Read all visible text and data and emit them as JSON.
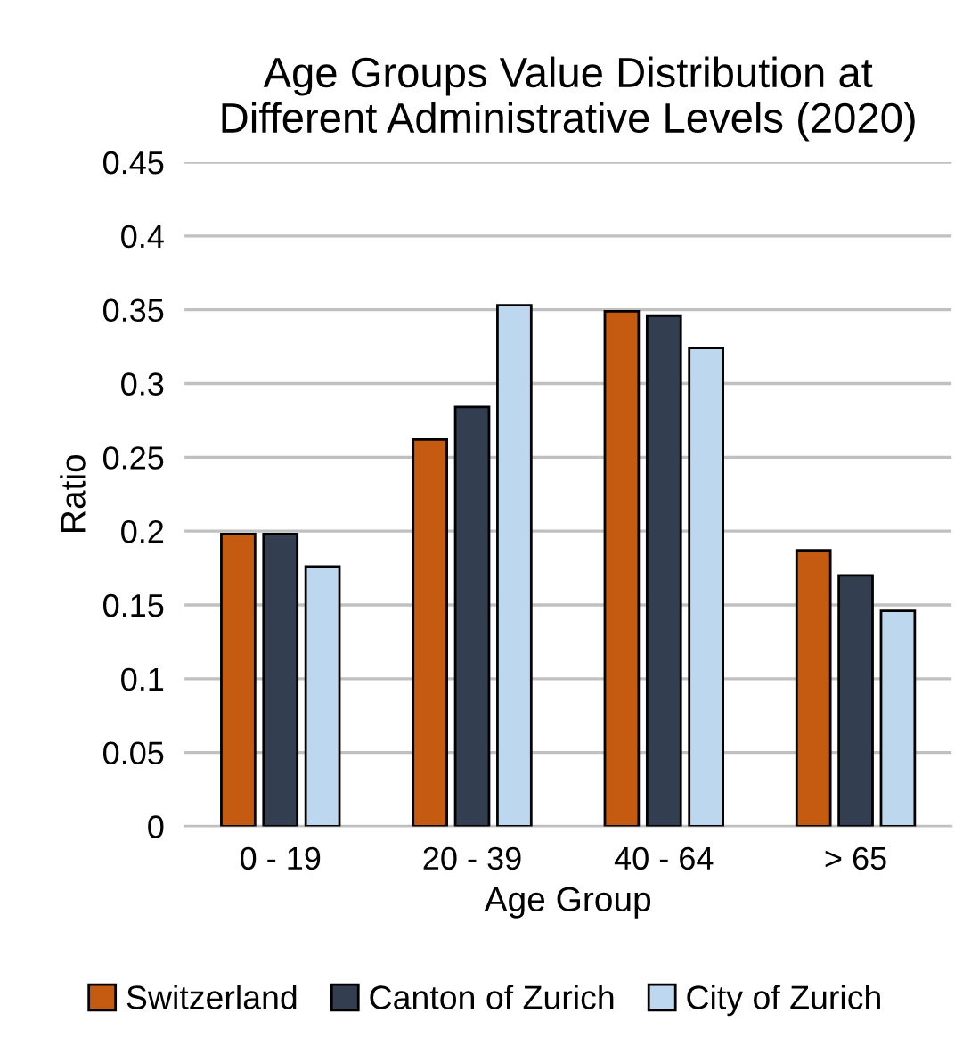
{
  "chart_data": {
    "type": "bar",
    "title": "Age Groups Value Distribution at\nDifferent Administrative Levels (2020)",
    "xlabel": "Age Group",
    "ylabel": "Ratio",
    "categories": [
      "0 - 19",
      "20 - 39",
      "40 - 64",
      "> 65"
    ],
    "series": [
      {
        "name": "Switzerland",
        "color": "#c55a11",
        "values": [
          0.198,
          0.262,
          0.349,
          0.187
        ]
      },
      {
        "name": "Canton of Zurich",
        "color": "#333f50",
        "values": [
          0.198,
          0.284,
          0.346,
          0.17
        ]
      },
      {
        "name": "City of Zurich",
        "color": "#bdd7ee",
        "values": [
          0.176,
          0.353,
          0.324,
          0.146
        ]
      }
    ],
    "ylim": [
      0,
      0.45
    ],
    "yticks": [
      0,
      {
        "value": 0.05,
        "label": "0.05"
      },
      {
        "value": 0.1,
        "label": "0.1"
      },
      {
        "value": 0.15,
        "label": "0.15"
      },
      {
        "value": 0.2,
        "label": "0.2"
      },
      {
        "value": 0.25,
        "label": "0.25"
      },
      {
        "value": 0.3,
        "label": "0.3"
      },
      {
        "value": 0.35,
        "label": "0.35"
      },
      {
        "value": 0.4,
        "label": "0.4"
      },
      {
        "value": 0.45,
        "label": "0.45"
      }
    ],
    "grid": "y",
    "legend": "bottom"
  }
}
